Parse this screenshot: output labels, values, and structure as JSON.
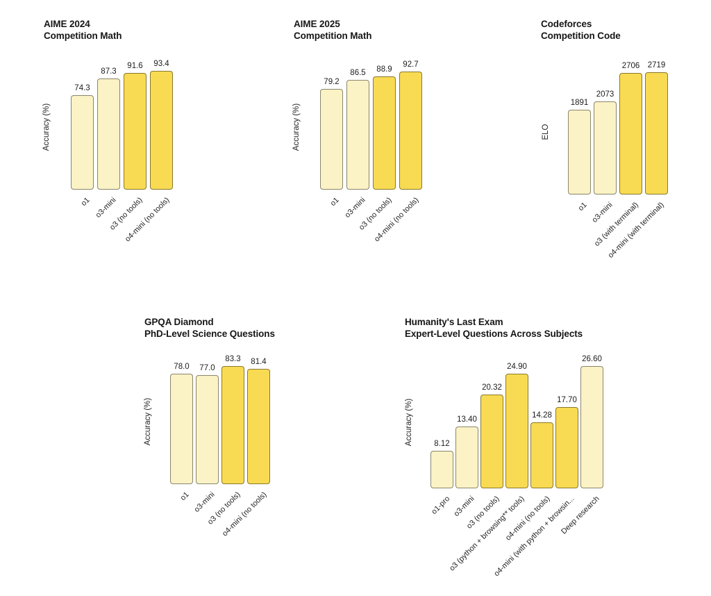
{
  "page": {
    "background": "#ffffff"
  },
  "colors": {
    "bar_light": "#FBF2C5",
    "bar_bright": "#F8DB52",
    "bar_border": "rgba(0,0,0,0.45)",
    "text_dark": "#161616"
  },
  "chart_data": [
    {
      "type": "bar",
      "title_line1": "AIME 2024",
      "title_line2": "Competition Math",
      "ylabel": "Accuracy (%)",
      "ylim": [
        0,
        100
      ],
      "grid": false,
      "legend": false,
      "categories": [
        "o1",
        "o3-mini",
        "o3 (no tools)",
        "o4-mini (no tools)"
      ],
      "values": [
        74.3,
        87.3,
        91.6,
        93.4
      ],
      "value_labels": [
        "74.3",
        "87.3",
        "91.6",
        "93.4"
      ],
      "bar_styles": [
        "light",
        "light",
        "bright",
        "bright"
      ]
    },
    {
      "type": "bar",
      "title_line1": "AIME 2025",
      "title_line2": "Competition Math",
      "ylabel": "Accuracy (%)",
      "ylim": [
        0,
        100
      ],
      "grid": false,
      "legend": false,
      "categories": [
        "o1",
        "o3-mini",
        "o3 (no tools)",
        "o4-mini (no tools)"
      ],
      "values": [
        79.2,
        86.5,
        88.9,
        92.7
      ],
      "value_labels": [
        "79.2",
        "86.5",
        "88.9",
        "92.7"
      ],
      "bar_styles": [
        "light",
        "light",
        "bright",
        "bright"
      ]
    },
    {
      "type": "bar",
      "title_line1": "Codeforces",
      "title_line2": "Competition Code",
      "ylabel": "ELO",
      "ylim": [
        0,
        2800
      ],
      "grid": false,
      "legend": false,
      "categories": [
        "o1",
        "o3-mini",
        "o3 (with terminal)",
        "o4-mini (with terminal)"
      ],
      "values": [
        1891,
        2073,
        2706,
        2719
      ],
      "value_labels": [
        "1891",
        "2073",
        "2706",
        "2719"
      ],
      "bar_styles": [
        "light",
        "light",
        "bright",
        "bright"
      ]
    },
    {
      "type": "bar",
      "title_line1": "GPQA Diamond",
      "title_line2": "PhD-Level Science Questions",
      "ylabel": "Accuracy (%)",
      "ylim": [
        0,
        100
      ],
      "grid": false,
      "legend": false,
      "categories": [
        "o1",
        "o3-mini",
        "o3 (no tools)",
        "o4-mini (no tools)"
      ],
      "values": [
        78.0,
        77.0,
        83.3,
        81.4
      ],
      "value_labels": [
        "78.0",
        "77.0",
        "83.3",
        "81.4"
      ],
      "bar_styles": [
        "light",
        "light",
        "bright",
        "bright"
      ]
    },
    {
      "type": "bar",
      "title_line1": "Humanity's Last Exam",
      "title_line2": "Expert-Level Questions Across Subjects",
      "ylabel": "Accuracy (%)",
      "ylim": [
        0,
        27
      ],
      "grid": false,
      "legend": false,
      "categories": [
        "o1-pro",
        "o3-mini",
        "o3 (no tools)",
        "o3 (python + browsing** tools)",
        "o4-mini (no tools)",
        "o4-mini (with python + browsin...",
        "Deep research"
      ],
      "values": [
        8.12,
        13.4,
        20.32,
        24.9,
        14.28,
        17.7,
        26.6
      ],
      "value_labels": [
        "8.12",
        "13.40",
        "20.32",
        "24.90",
        "14.28",
        "17.70",
        "26.60"
      ],
      "bar_styles": [
        "light",
        "light",
        "bright",
        "bright",
        "bright",
        "bright",
        "light"
      ]
    }
  ]
}
